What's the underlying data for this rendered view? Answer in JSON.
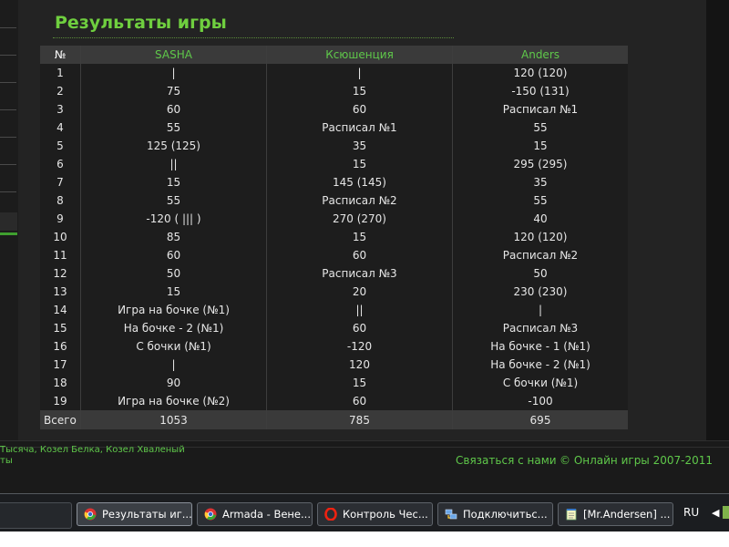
{
  "page": {
    "title": "Результаты игры"
  },
  "table": {
    "headers": [
      "№",
      "SASHA",
      "Ксюшенция",
      "Anders"
    ],
    "rows": [
      [
        "1",
        "|",
        "|",
        "120 (120)"
      ],
      [
        "2",
        "75",
        "15",
        "-150 (131)"
      ],
      [
        "3",
        "60",
        "60",
        "Расписал №1"
      ],
      [
        "4",
        "55",
        "Расписал №1",
        "55"
      ],
      [
        "5",
        "125 (125)",
        "35",
        "15"
      ],
      [
        "6",
        "||",
        "15",
        "295 (295)"
      ],
      [
        "7",
        "15",
        "145 (145)",
        "35"
      ],
      [
        "8",
        "55",
        "Расписал №2",
        "55"
      ],
      [
        "9",
        "-120 ( ||| )",
        "270 (270)",
        "40"
      ],
      [
        "10",
        "85",
        "15",
        "120 (120)"
      ],
      [
        "11",
        "60",
        "60",
        "Расписал №2"
      ],
      [
        "12",
        "50",
        "Расписал №3",
        "50"
      ],
      [
        "13",
        "15",
        "20",
        "230 (230)"
      ],
      [
        "14",
        "Игра на бочке (№1)",
        "||",
        "|"
      ],
      [
        "15",
        "На бочке - 2 (№1)",
        "60",
        "Расписал №3"
      ],
      [
        "16",
        "С бочки (№1)",
        "-120",
        "На бочке - 1 (№1)"
      ],
      [
        "17",
        "|",
        "120",
        "На бочке - 2 (№1)"
      ],
      [
        "18",
        "90",
        "15",
        "С бочки (№1)"
      ],
      [
        "19",
        "Игра на бочке (№2)",
        "60",
        "-100"
      ]
    ],
    "total": {
      "label": "Всего",
      "values": [
        "1053",
        "785",
        "695"
      ]
    }
  },
  "footer": {
    "games_line1": "Тысяча, Козел Белка, Козел Хваленый",
    "games_line2": "ты",
    "contact": "Связаться с нами",
    "copyright": "© Онлайн игры 2007-2011"
  },
  "taskbar": {
    "tasks": [
      {
        "label": "Результаты иг...",
        "icon": "chrome-icon",
        "active": true
      },
      {
        "label": "Armada - Вене...",
        "icon": "chrome-icon",
        "active": false
      },
      {
        "label": "Контроль Чес...",
        "icon": "opera-icon",
        "active": false
      },
      {
        "label": "Подключитьс...",
        "icon": "network-icon",
        "active": false
      },
      {
        "label": "[Mr.Andersen] ...",
        "icon": "notepad-icon",
        "active": false
      }
    ],
    "language": "RU",
    "tray_arrow": "◀"
  },
  "colors": {
    "accent": "#6fcf3f",
    "player": "#5fc84a",
    "background": "#232323"
  }
}
